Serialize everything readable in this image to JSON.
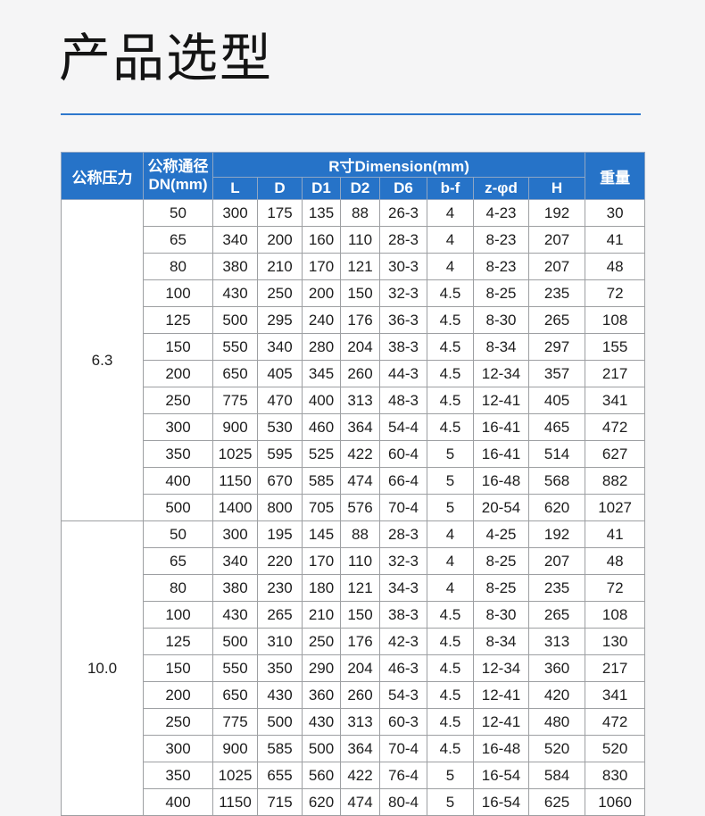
{
  "page": {
    "title": "产品选型",
    "accent_color": "#2e78cd",
    "background_color": "#f5f5f6"
  },
  "table": {
    "header_bg": "#2673c8",
    "header": {
      "pressure": "公称压力",
      "dn_line1": "公称通径",
      "dn_line2": "DN(mm)",
      "dimension_group": "R寸Dimension(mm)",
      "weight": "重量",
      "sub_columns": [
        "L",
        "D",
        "D1",
        "D2",
        "D6",
        "b-f",
        "z-φd",
        "H"
      ]
    },
    "sections": [
      {
        "pressure": "6.3",
        "rows": [
          [
            "50",
            "300",
            "175",
            "135",
            "88",
            "26-3",
            "4",
            "4-23",
            "192",
            "30"
          ],
          [
            "65",
            "340",
            "200",
            "160",
            "110",
            "28-3",
            "4",
            "8-23",
            "207",
            "41"
          ],
          [
            "80",
            "380",
            "210",
            "170",
            "121",
            "30-3",
            "4",
            "8-23",
            "207",
            "48"
          ],
          [
            "100",
            "430",
            "250",
            "200",
            "150",
            "32-3",
            "4.5",
            "8-25",
            "235",
            "72"
          ],
          [
            "125",
            "500",
            "295",
            "240",
            "176",
            "36-3",
            "4.5",
            "8-30",
            "265",
            "108"
          ],
          [
            "150",
            "550",
            "340",
            "280",
            "204",
            "38-3",
            "4.5",
            "8-34",
            "297",
            "155"
          ],
          [
            "200",
            "650",
            "405",
            "345",
            "260",
            "44-3",
            "4.5",
            "12-34",
            "357",
            "217"
          ],
          [
            "250",
            "775",
            "470",
            "400",
            "313",
            "48-3",
            "4.5",
            "12-41",
            "405",
            "341"
          ],
          [
            "300",
            "900",
            "530",
            "460",
            "364",
            "54-4",
            "4.5",
            "16-41",
            "465",
            "472"
          ],
          [
            "350",
            "1025",
            "595",
            "525",
            "422",
            "60-4",
            "5",
            "16-41",
            "514",
            "627"
          ],
          [
            "400",
            "1150",
            "670",
            "585",
            "474",
            "66-4",
            "5",
            "16-48",
            "568",
            "882"
          ],
          [
            "500",
            "1400",
            "800",
            "705",
            "576",
            "70-4",
            "5",
            "20-54",
            "620",
            "1027"
          ]
        ]
      },
      {
        "pressure": "10.0",
        "rows": [
          [
            "50",
            "300",
            "195",
            "145",
            "88",
            "28-3",
            "4",
            "4-25",
            "192",
            "41"
          ],
          [
            "65",
            "340",
            "220",
            "170",
            "110",
            "32-3",
            "4",
            "8-25",
            "207",
            "48"
          ],
          [
            "80",
            "380",
            "230",
            "180",
            "121",
            "34-3",
            "4",
            "8-25",
            "235",
            "72"
          ],
          [
            "100",
            "430",
            "265",
            "210",
            "150",
            "38-3",
            "4.5",
            "8-30",
            "265",
            "108"
          ],
          [
            "125",
            "500",
            "310",
            "250",
            "176",
            "42-3",
            "4.5",
            "8-34",
            "313",
            "130"
          ],
          [
            "150",
            "550",
            "350",
            "290",
            "204",
            "46-3",
            "4.5",
            "12-34",
            "360",
            "217"
          ],
          [
            "200",
            "650",
            "430",
            "360",
            "260",
            "54-3",
            "4.5",
            "12-41",
            "420",
            "341"
          ],
          [
            "250",
            "775",
            "500",
            "430",
            "313",
            "60-3",
            "4.5",
            "12-41",
            "480",
            "472"
          ],
          [
            "300",
            "900",
            "585",
            "500",
            "364",
            "70-4",
            "4.5",
            "16-48",
            "520",
            "520"
          ],
          [
            "350",
            "1025",
            "655",
            "560",
            "422",
            "76-4",
            "5",
            "16-54",
            "584",
            "830"
          ],
          [
            "400",
            "1150",
            "715",
            "620",
            "474",
            "80-4",
            "5",
            "16-54",
            "625",
            "1060"
          ]
        ]
      }
    ]
  }
}
